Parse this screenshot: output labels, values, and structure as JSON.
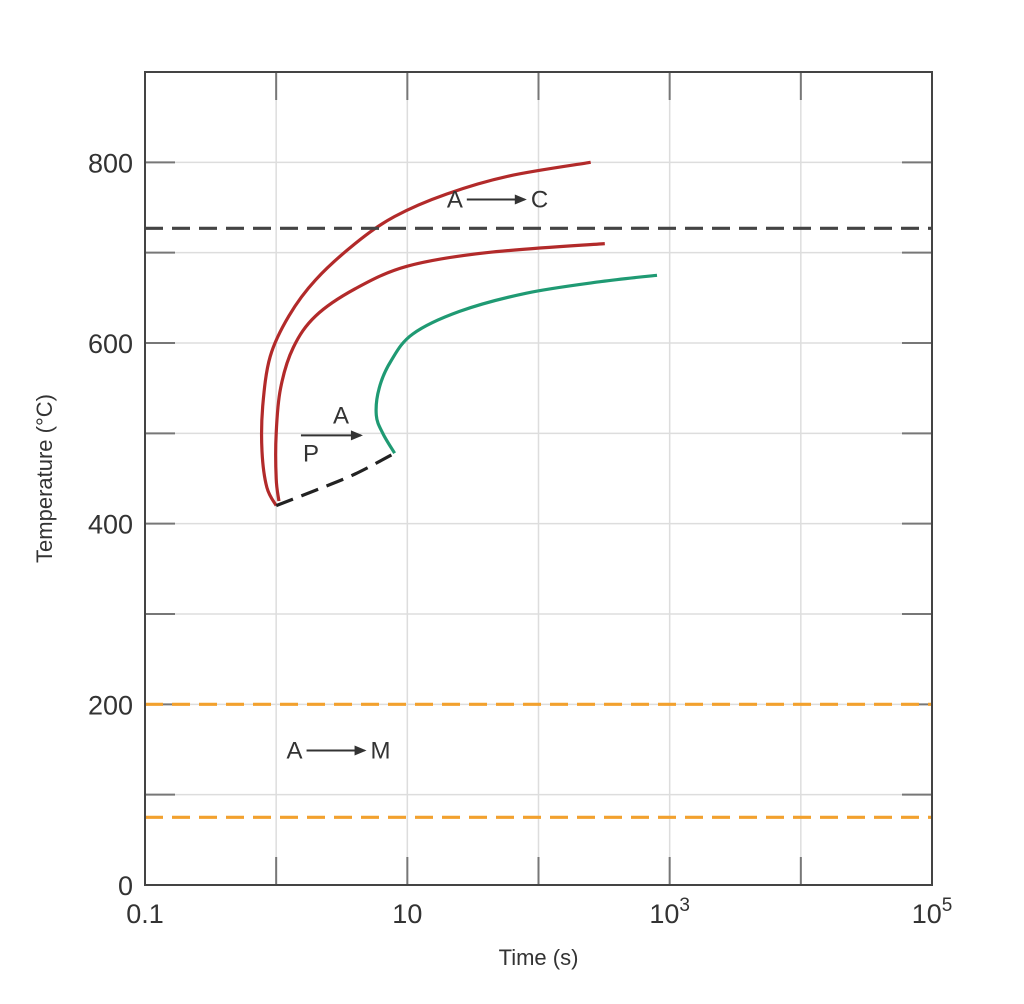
{
  "chart_data": {
    "type": "line",
    "title": "",
    "xlabel": "Time (s)",
    "ylabel": "Temperature (°C)",
    "x_scale": "log",
    "xlim": [
      0.1,
      100000
    ],
    "ylim": [
      0,
      900
    ],
    "grid": true,
    "x_ticks": [
      {
        "value": 0.1,
        "label": "0.1",
        "sup": ""
      },
      {
        "value": 10,
        "label": "10",
        "sup": ""
      },
      {
        "value": 1000,
        "label": "10",
        "sup": "3"
      },
      {
        "value": 100000,
        "label": "10",
        "sup": "5"
      }
    ],
    "y_ticks": [
      {
        "value": 0,
        "label": "0"
      },
      {
        "value": 200,
        "label": "200"
      },
      {
        "value": 400,
        "label": "400"
      },
      {
        "value": 600,
        "label": "600"
      },
      {
        "value": 800,
        "label": "800"
      }
    ],
    "series": [
      {
        "color": "#b22a2a",
        "style": "solid",
        "x": [
          1.0,
          0.85,
          0.78,
          0.79,
          0.9,
          1.25,
          2.0,
          4.0,
          8.0,
          20.0,
          60.0,
          250.0
        ],
        "y": [
          420,
          440,
          480,
          530,
          585,
          630,
          670,
          710,
          740,
          765,
          785,
          800
        ]
      },
      {
        "color": "#b22a2a",
        "style": "solid",
        "x": [
          1.05,
          1.0,
          1.0,
          1.08,
          1.35,
          2.0,
          4.0,
          10.0,
          40.0,
          320.0
        ],
        "y": [
          425,
          450,
          500,
          550,
          595,
          630,
          660,
          685,
          700,
          710
        ]
      },
      {
        "color": "#1f9a73",
        "style": "solid",
        "x": [
          8.0,
          6.5,
          5.8,
          6.1,
          7.5,
          11.0,
          25.0,
          80.0,
          300.0,
          800.0
        ],
        "y": [
          478,
          500,
          520,
          550,
          580,
          610,
          635,
          655,
          668,
          675
        ]
      },
      {
        "color": "#222222",
        "style": "dashed",
        "x": [
          1.0,
          2.0,
          4.0,
          8.0
        ],
        "y": [
          420,
          437,
          455,
          478
        ]
      },
      {
        "color": "#444444",
        "style": "dashed",
        "x": [
          0.1,
          100000
        ],
        "y": [
          727,
          727
        ]
      },
      {
        "color": "#f2a12e",
        "style": "dashed",
        "x": [
          0.1,
          100000
        ],
        "y": [
          200,
          200
        ]
      },
      {
        "color": "#f2a12e",
        "style": "dashed",
        "x": [
          0.1,
          100000
        ],
        "y": [
          75,
          75
        ]
      }
    ],
    "annotations": [
      {
        "from": "A",
        "to": "C",
        "x": 20,
        "y": 750
      },
      {
        "from": "A",
        "to": "P",
        "x": 1.6,
        "y": 500
      },
      {
        "from": "A",
        "to": "M",
        "x": 1.2,
        "y": 140
      }
    ]
  }
}
